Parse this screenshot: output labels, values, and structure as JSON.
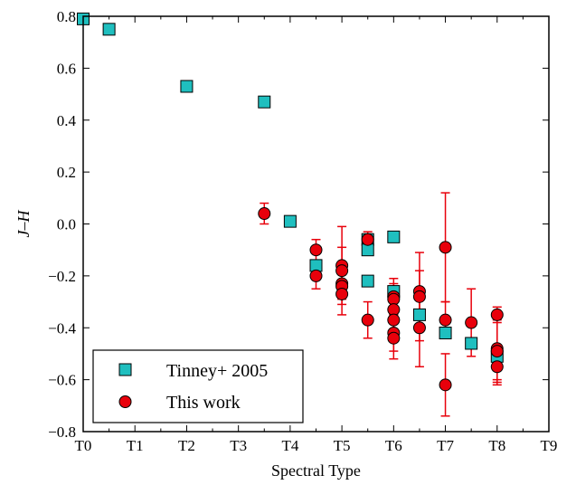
{
  "chart_data": {
    "type": "scatter",
    "xlabel": "Spectral Type",
    "ylabel": "J–H",
    "xlim": [
      0,
      9
    ],
    "ylim": [
      -0.8,
      0.8
    ],
    "x_tick_labels": [
      "T0",
      "T1",
      "T2",
      "T3",
      "T4",
      "T5",
      "T6",
      "T7",
      "T8",
      "T9"
    ],
    "y_ticks": [
      -0.8,
      -0.6,
      -0.4,
      -0.2,
      0.0,
      0.2,
      0.4,
      0.6,
      0.8
    ],
    "y_tick_labels": [
      "−0.8",
      "−0.6",
      "−0.4",
      "−0.2",
      "0.0",
      "0.2",
      "0.4",
      "0.6",
      "0.8"
    ],
    "grid": false,
    "legend_position": "bottom-left",
    "series": [
      {
        "name": "Tinney+ 2005",
        "marker": "square",
        "color": "#1fbfbf",
        "points": [
          {
            "x": 0.0,
            "y": 0.79
          },
          {
            "x": 0.5,
            "y": 0.75
          },
          {
            "x": 2.0,
            "y": 0.53
          },
          {
            "x": 3.5,
            "y": 0.47
          },
          {
            "x": 4.0,
            "y": 0.01
          },
          {
            "x": 4.5,
            "y": -0.16
          },
          {
            "x": 5.5,
            "y": -0.06
          },
          {
            "x": 5.5,
            "y": -0.1
          },
          {
            "x": 5.5,
            "y": -0.22
          },
          {
            "x": 6.0,
            "y": -0.05
          },
          {
            "x": 6.0,
            "y": -0.26
          },
          {
            "x": 6.5,
            "y": -0.35
          },
          {
            "x": 7.0,
            "y": -0.42
          },
          {
            "x": 7.5,
            "y": -0.46
          },
          {
            "x": 8.0,
            "y": -0.51
          }
        ]
      },
      {
        "name": "This work",
        "marker": "circle",
        "color": "#e8000b",
        "error_color": "#e8000b",
        "points": [
          {
            "x": 3.5,
            "y": 0.04,
            "err": 0.04
          },
          {
            "x": 4.5,
            "y": -0.1,
            "err": 0.04
          },
          {
            "x": 4.5,
            "y": -0.2,
            "err": 0.05
          },
          {
            "x": 5.0,
            "y": -0.16,
            "err": 0.07
          },
          {
            "x": 5.0,
            "y": -0.18,
            "err": 0.17
          },
          {
            "x": 5.0,
            "y": -0.23,
            "err": 0.05
          },
          {
            "x": 5.0,
            "y": -0.24,
            "err": 0.05
          },
          {
            "x": 5.0,
            "y": -0.27,
            "err": 0.04
          },
          {
            "x": 5.5,
            "y": -0.06,
            "err": 0.03
          },
          {
            "x": 5.5,
            "y": -0.37,
            "err": 0.07
          },
          {
            "x": 6.0,
            "y": -0.28,
            "err": 0.07
          },
          {
            "x": 6.0,
            "y": -0.29,
            "err": 0.06
          },
          {
            "x": 6.0,
            "y": -0.33,
            "err": 0.05
          },
          {
            "x": 6.0,
            "y": -0.37,
            "err": 0.07
          },
          {
            "x": 6.0,
            "y": -0.42,
            "err": 0.07
          },
          {
            "x": 6.0,
            "y": -0.44,
            "err": 0.08
          },
          {
            "x": 6.5,
            "y": -0.26,
            "err": 0.08
          },
          {
            "x": 6.5,
            "y": -0.28,
            "err": 0.17
          },
          {
            "x": 6.5,
            "y": -0.4,
            "err": 0.15
          },
          {
            "x": 7.0,
            "y": -0.09,
            "err": 0.21
          },
          {
            "x": 7.0,
            "y": -0.37,
            "err": 0.07
          },
          {
            "x": 7.0,
            "y": -0.62,
            "err": 0.12
          },
          {
            "x": 7.5,
            "y": -0.38,
            "err": 0.13
          },
          {
            "x": 8.0,
            "y": -0.35,
            "err": 0.03
          },
          {
            "x": 8.0,
            "y": -0.48,
            "err": 0.12
          },
          {
            "x": 8.0,
            "y": -0.49,
            "err": 0.12
          },
          {
            "x": 8.0,
            "y": -0.55,
            "err": 0.07
          }
        ]
      }
    ]
  }
}
